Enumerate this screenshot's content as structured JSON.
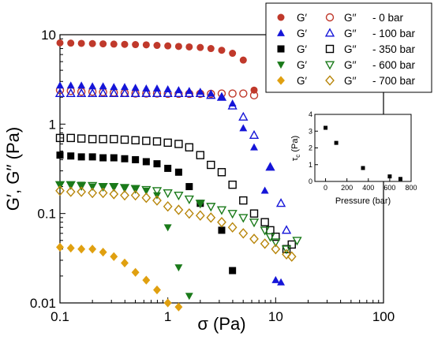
{
  "chart_data": [
    {
      "type": "scatter",
      "xlabel": "σ (Pa)",
      "ylabel": "G′, G′′ (Pa)",
      "x_scale": "log",
      "y_scale": "log",
      "xlim": [
        0.1,
        100
      ],
      "ylim": [
        0.01,
        10
      ],
      "x_tick_labels": [
        "0.1",
        "1",
        "10",
        "100"
      ],
      "y_tick_labels": [
        "0.01",
        "0.1",
        "1",
        "10"
      ],
      "grid": false,
      "legend_placement": "top-right",
      "legend": [
        {
          "g1": "G′",
          "g2": "G′′",
          "label": "-  0 bar"
        },
        {
          "g1": "G′",
          "g2": "G′′",
          "label": "-  100 bar"
        },
        {
          "g1": "G′",
          "g2": "G′′",
          "label": "-  350 bar"
        },
        {
          "g1": "G′",
          "g2": "G′′",
          "label": "-  600 bar"
        },
        {
          "g1": "G′",
          "g2": "G′′",
          "label": "-  700 bar"
        }
      ],
      "series": [
        {
          "color": "#c0392b",
          "marker": "circle",
          "filled": true,
          "points": [
            [
              0.1,
              8.1
            ],
            [
              0.126,
              8.05
            ],
            [
              0.158,
              8.0
            ],
            [
              0.2,
              7.95
            ],
            [
              0.251,
              7.9
            ],
            [
              0.316,
              7.85
            ],
            [
              0.398,
              7.8
            ],
            [
              0.501,
              7.75
            ],
            [
              0.631,
              7.7
            ],
            [
              0.794,
              7.6
            ],
            [
              1.0,
              7.5
            ],
            [
              1.26,
              7.4
            ],
            [
              1.58,
              7.3
            ],
            [
              2.0,
              7.2
            ],
            [
              2.51,
              7.0
            ],
            [
              3.16,
              6.7
            ],
            [
              3.98,
              6.2
            ],
            [
              5.01,
              5.2
            ]
          ]
        },
        {
          "color": "#c0392b",
          "marker": "circle",
          "filled": false,
          "points": [
            [
              0.1,
              2.4
            ],
            [
              0.126,
              2.35
            ],
            [
              0.158,
              2.3
            ],
            [
              0.2,
              2.3
            ],
            [
              0.251,
              2.28
            ],
            [
              0.316,
              2.25
            ],
            [
              0.398,
              2.23
            ],
            [
              0.501,
              2.2
            ],
            [
              0.631,
              2.2
            ],
            [
              0.794,
              2.2
            ],
            [
              1.0,
              2.18
            ],
            [
              1.26,
              2.18
            ],
            [
              1.58,
              2.18
            ],
            [
              2.0,
              2.18
            ],
            [
              2.51,
              2.18
            ],
            [
              3.16,
              2.2
            ],
            [
              3.98,
              2.2
            ],
            [
              5.01,
              2.2
            ],
            [
              6.31,
              2.1
            ]
          ]
        },
        {
          "color": "#c0392b",
          "marker": "circle",
          "filled": true,
          "points": [
            [
              6.31,
              2.4
            ]
          ]
        },
        {
          "color": "#1515d8",
          "marker": "triangle-up",
          "filled": true,
          "points": [
            [
              0.1,
              2.7
            ],
            [
              0.126,
              2.7
            ],
            [
              0.158,
              2.7
            ],
            [
              0.2,
              2.65
            ],
            [
              0.251,
              2.65
            ],
            [
              0.316,
              2.6
            ],
            [
              0.398,
              2.6
            ],
            [
              0.501,
              2.55
            ],
            [
              0.631,
              2.5
            ],
            [
              0.794,
              2.5
            ],
            [
              1.0,
              2.45
            ],
            [
              1.26,
              2.4
            ],
            [
              1.58,
              2.35
            ],
            [
              2.0,
              2.3
            ],
            [
              2.51,
              2.2
            ],
            [
              3.16,
              2.0
            ],
            [
              3.98,
              1.7
            ],
            [
              5.01,
              0.9
            ],
            [
              6.31,
              0.55
            ],
            [
              7.94,
              0.18
            ],
            [
              8.91,
              0.33
            ],
            [
              10.0,
              0.018
            ],
            [
              11.2,
              0.017
            ]
          ]
        },
        {
          "color": "#1515d8",
          "marker": "triangle-up",
          "filled": false,
          "points": [
            [
              0.1,
              2.2
            ],
            [
              0.126,
              2.2
            ],
            [
              0.158,
              2.2
            ],
            [
              0.2,
              2.2
            ],
            [
              0.251,
              2.2
            ],
            [
              0.316,
              2.2
            ],
            [
              0.398,
              2.2
            ],
            [
              0.501,
              2.2
            ],
            [
              0.631,
              2.2
            ],
            [
              0.794,
              2.2
            ],
            [
              1.0,
              2.2
            ],
            [
              1.26,
              2.2
            ],
            [
              1.58,
              2.2
            ],
            [
              2.0,
              2.2
            ],
            [
              2.51,
              2.1
            ],
            [
              3.16,
              2.0
            ],
            [
              3.98,
              1.6
            ],
            [
              5.01,
              1.2
            ],
            [
              6.31,
              0.75
            ],
            [
              8.91,
              0.33
            ],
            [
              11.2,
              0.13
            ],
            [
              12.6,
              0.065
            ]
          ]
        },
        {
          "color": "#000000",
          "marker": "square",
          "filled": true,
          "points": [
            [
              0.1,
              0.45
            ],
            [
              0.126,
              0.44
            ],
            [
              0.158,
              0.43
            ],
            [
              0.2,
              0.43
            ],
            [
              0.251,
              0.42
            ],
            [
              0.316,
              0.42
            ],
            [
              0.398,
              0.41
            ],
            [
              0.501,
              0.4
            ],
            [
              0.631,
              0.38
            ],
            [
              0.794,
              0.36
            ],
            [
              1.0,
              0.32
            ],
            [
              1.26,
              0.29
            ],
            [
              1.58,
              0.2
            ],
            [
              2.0,
              0.13
            ],
            [
              3.16,
              0.065
            ],
            [
              3.98,
              0.023
            ]
          ]
        },
        {
          "color": "#000000",
          "marker": "square",
          "filled": false,
          "points": [
            [
              0.1,
              0.7
            ],
            [
              0.126,
              0.7
            ],
            [
              0.158,
              0.69
            ],
            [
              0.2,
              0.68
            ],
            [
              0.251,
              0.68
            ],
            [
              0.316,
              0.68
            ],
            [
              0.398,
              0.67
            ],
            [
              0.501,
              0.66
            ],
            [
              0.631,
              0.65
            ],
            [
              0.794,
              0.64
            ],
            [
              1.0,
              0.62
            ],
            [
              1.26,
              0.6
            ],
            [
              1.58,
              0.55
            ],
            [
              2.0,
              0.45
            ],
            [
              2.51,
              0.35
            ],
            [
              3.16,
              0.29
            ],
            [
              3.98,
              0.21
            ],
            [
              5.01,
              0.14
            ],
            [
              6.31,
              0.1
            ],
            [
              7.94,
              0.08
            ],
            [
              8.91,
              0.065
            ],
            [
              10.0,
              0.055
            ],
            [
              12.6,
              0.04
            ],
            [
              14.1,
              0.045
            ]
          ]
        },
        {
          "color": "#1a7a1a",
          "marker": "triangle-down",
          "filled": true,
          "points": [
            [
              0.1,
              0.21
            ],
            [
              0.126,
              0.21
            ],
            [
              0.158,
              0.21
            ],
            [
              0.2,
              0.2
            ],
            [
              0.251,
              0.2
            ],
            [
              0.316,
              0.2
            ],
            [
              0.398,
              0.195
            ],
            [
              0.501,
              0.19
            ],
            [
              0.631,
              0.18
            ],
            [
              0.794,
              0.16
            ],
            [
              1.0,
              0.07
            ],
            [
              1.26,
              0.025
            ],
            [
              1.58,
              0.012
            ],
            [
              2.0,
              0.13
            ]
          ]
        },
        {
          "color": "#1a7a1a",
          "marker": "triangle-down",
          "filled": false,
          "points": [
            [
              0.1,
              0.21
            ],
            [
              0.126,
              0.21
            ],
            [
              0.158,
              0.205
            ],
            [
              0.2,
              0.205
            ],
            [
              0.251,
              0.2
            ],
            [
              0.316,
              0.2
            ],
            [
              0.398,
              0.195
            ],
            [
              0.501,
              0.19
            ],
            [
              0.631,
              0.185
            ],
            [
              0.794,
              0.18
            ],
            [
              1.0,
              0.17
            ],
            [
              1.26,
              0.16
            ],
            [
              1.58,
              0.145
            ],
            [
              2.0,
              0.13
            ],
            [
              2.51,
              0.12
            ],
            [
              3.16,
              0.11
            ],
            [
              3.98,
              0.1
            ],
            [
              5.01,
              0.09
            ],
            [
              6.31,
              0.08
            ],
            [
              7.94,
              0.065
            ],
            [
              8.91,
              0.055
            ],
            [
              10.0,
              0.048
            ],
            [
              12.6,
              0.04
            ],
            [
              15.8,
              0.05
            ]
          ]
        },
        {
          "color": "#e0a010",
          "marker": "diamond",
          "filled": true,
          "points": [
            [
              0.1,
              0.042
            ],
            [
              0.126,
              0.041
            ],
            [
              0.158,
              0.04
            ],
            [
              0.2,
              0.04
            ],
            [
              0.251,
              0.037
            ],
            [
              0.316,
              0.033
            ],
            [
              0.398,
              0.028
            ],
            [
              0.501,
              0.022
            ],
            [
              0.631,
              0.018
            ],
            [
              0.794,
              0.014
            ],
            [
              1.0,
              0.01
            ],
            [
              1.26,
              0.009
            ]
          ]
        },
        {
          "color": "#b8860b",
          "marker": "diamond",
          "filled": false,
          "points": [
            [
              0.1,
              0.18
            ],
            [
              0.126,
              0.175
            ],
            [
              0.158,
              0.175
            ],
            [
              0.2,
              0.17
            ],
            [
              0.251,
              0.17
            ],
            [
              0.316,
              0.165
            ],
            [
              0.398,
              0.16
            ],
            [
              0.501,
              0.16
            ],
            [
              0.631,
              0.15
            ],
            [
              0.794,
              0.14
            ],
            [
              1.0,
              0.12
            ],
            [
              1.26,
              0.11
            ],
            [
              1.58,
              0.1
            ],
            [
              2.0,
              0.095
            ],
            [
              2.51,
              0.09
            ],
            [
              3.16,
              0.08
            ],
            [
              3.98,
              0.07
            ],
            [
              5.01,
              0.06
            ],
            [
              6.31,
              0.052
            ],
            [
              7.94,
              0.046
            ],
            [
              10.0,
              0.04
            ],
            [
              12.6,
              0.035
            ],
            [
              14.1,
              0.033
            ]
          ]
        }
      ]
    },
    {
      "type": "scatter",
      "xlabel": "Pressure (bar)",
      "ylabel": "τc (Pa)",
      "ylabel_main": "τ",
      "ylabel_sub": "c",
      "ylabel_unit": " (Pa)",
      "xlim": [
        -100,
        800
      ],
      "ylim": [
        0,
        4
      ],
      "x_ticks": [
        0,
        200,
        400,
        600,
        800
      ],
      "y_ticks": [
        0,
        1,
        2,
        3,
        4
      ],
      "x_tick_labels": [
        "0",
        "200",
        "400",
        "600",
        "800"
      ],
      "y_tick_labels": [
        "0",
        "1",
        "2",
        "3",
        "4"
      ],
      "series": [
        {
          "color": "#000000",
          "marker": "square",
          "filled": true,
          "points": [
            [
              0,
              3.2
            ],
            [
              100,
              2.3
            ],
            [
              350,
              0.8
            ],
            [
              600,
              0.3
            ],
            [
              700,
              0.15
            ]
          ]
        }
      ]
    }
  ]
}
